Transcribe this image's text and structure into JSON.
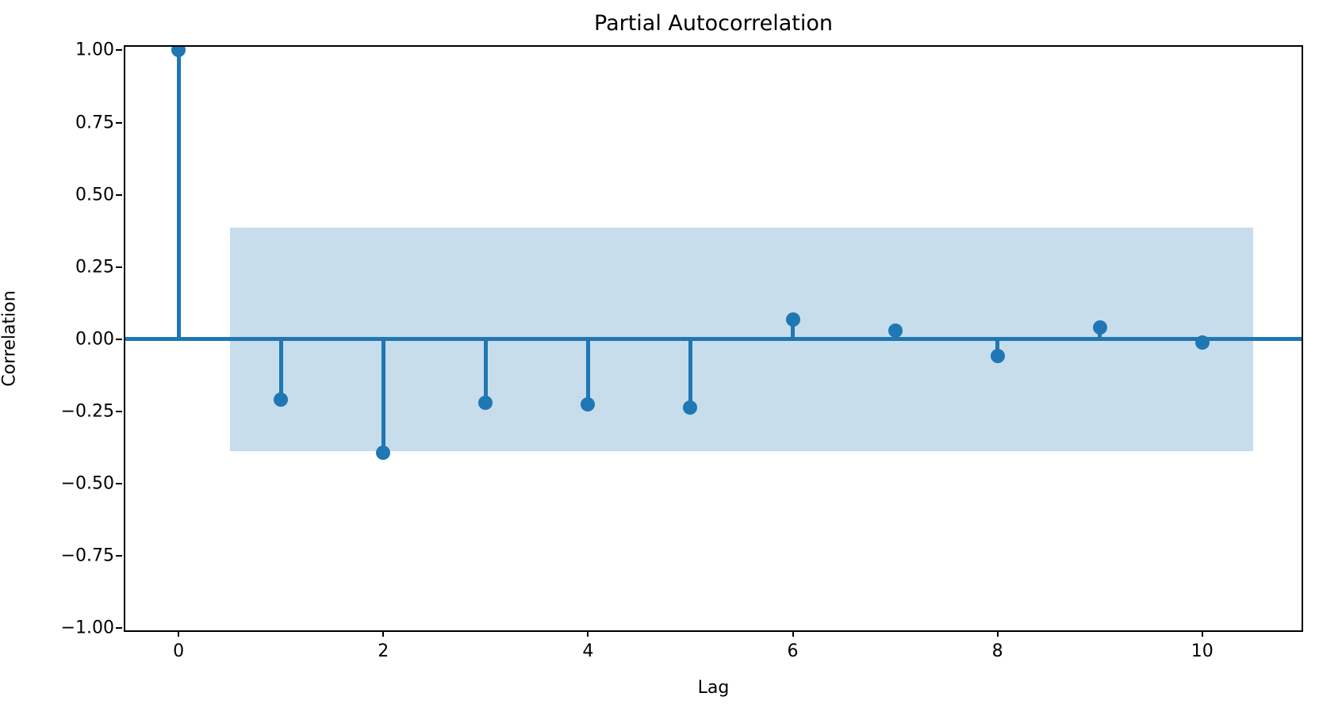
{
  "chart_data": {
    "type": "stem",
    "title": "Partial Autocorrelation",
    "xlabel": "Lag",
    "ylabel": "Correlation",
    "x": [
      0,
      1,
      2,
      3,
      4,
      5,
      6,
      7,
      8,
      9,
      10
    ],
    "values": [
      1.0,
      -0.21,
      -0.392,
      -0.219,
      -0.224,
      -0.235,
      0.067,
      0.029,
      -0.058,
      0.04,
      -0.01
    ],
    "confidence_band": {
      "x_start": 0.5,
      "x_end": 10.5,
      "upper": 0.386,
      "lower": -0.386
    },
    "xlim": [
      -0.52,
      10.97
    ],
    "ylim": [
      -1.007,
      1.012
    ],
    "x_ticks": [
      0,
      2,
      4,
      6,
      8,
      10
    ],
    "x_tick_labels": [
      "0",
      "2",
      "4",
      "6",
      "8",
      "10"
    ],
    "y_ticks": [
      1.0,
      0.75,
      0.5,
      0.25,
      0.0,
      -0.25,
      -0.5,
      -0.75,
      -1.0
    ],
    "y_tick_labels": [
      "1.00",
      "0.75",
      "0.50",
      "0.25",
      "0.00",
      "−0.25",
      "−0.50",
      "−0.75",
      "−1.00"
    ],
    "grid": false,
    "legend": null,
    "colors": {
      "stem": "#1f77b4",
      "marker": "#1f77b4",
      "zero_line": "#1f77b4",
      "band": "#c7ddec",
      "spine": "#000000",
      "background": "#ffffff",
      "text": "#000000"
    }
  }
}
